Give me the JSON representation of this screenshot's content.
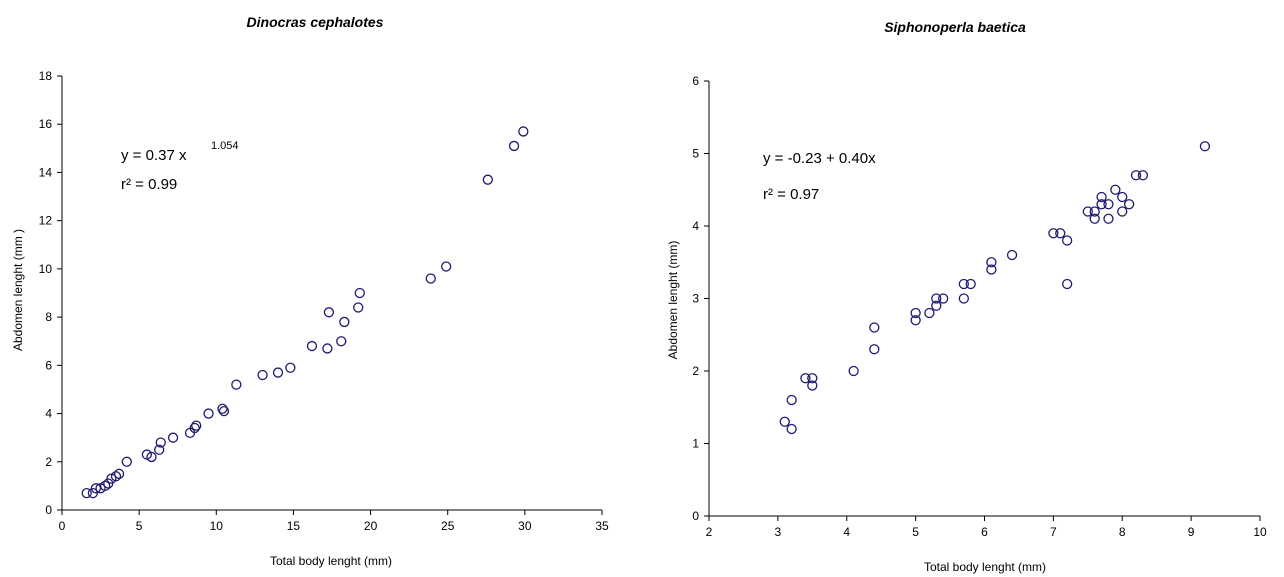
{
  "chart_data": [
    {
      "type": "scatter",
      "title": "Dinocras cephalotes",
      "xlabel": "Total body lenght (mm)",
      "ylabel": "Abdomen lenght (mm )",
      "xlim": [
        0,
        35
      ],
      "ylim": [
        0,
        18
      ],
      "x_ticks": [
        "0",
        "5",
        "10",
        "15",
        "20",
        "25",
        "30",
        "35"
      ],
      "y_ticks": [
        "0",
        "2",
        "4",
        "6",
        "8",
        "10",
        "12",
        "14",
        "16",
        "18"
      ],
      "grid": false,
      "annotation": {
        "equation": "y = 0.37 x",
        "exponent": "1.054",
        "r2": "r² = 0.99"
      },
      "points": [
        [
          1.6,
          0.7
        ],
        [
          2.0,
          0.7
        ],
        [
          2.2,
          0.9
        ],
        [
          2.5,
          0.9
        ],
        [
          2.8,
          1.0
        ],
        [
          3.0,
          1.1
        ],
        [
          3.2,
          1.3
        ],
        [
          3.5,
          1.4
        ],
        [
          3.7,
          1.5
        ],
        [
          4.2,
          2.0
        ],
        [
          5.5,
          2.3
        ],
        [
          5.8,
          2.2
        ],
        [
          6.3,
          2.5
        ],
        [
          6.4,
          2.8
        ],
        [
          7.2,
          3.0
        ],
        [
          8.3,
          3.2
        ],
        [
          8.6,
          3.4
        ],
        [
          8.7,
          3.5
        ],
        [
          9.5,
          4.0
        ],
        [
          10.4,
          4.2
        ],
        [
          10.5,
          4.1
        ],
        [
          11.3,
          5.2
        ],
        [
          13.0,
          5.6
        ],
        [
          14.0,
          5.7
        ],
        [
          14.8,
          5.9
        ],
        [
          16.2,
          6.8
        ],
        [
          17.2,
          6.7
        ],
        [
          17.3,
          8.2
        ],
        [
          18.1,
          7.0
        ],
        [
          18.3,
          7.8
        ],
        [
          19.2,
          8.4
        ],
        [
          19.3,
          9.0
        ],
        [
          23.9,
          9.6
        ],
        [
          24.9,
          10.1
        ],
        [
          27.6,
          13.7
        ],
        [
          29.3,
          15.1
        ],
        [
          29.9,
          15.7
        ]
      ]
    },
    {
      "type": "scatter",
      "title": "Siphonoperla baetica",
      "xlabel": "Total body lenght (mm)",
      "ylabel": "Abdomen lenght (mm)",
      "xlim": [
        2,
        10
      ],
      "ylim": [
        0,
        6
      ],
      "x_ticks": [
        "2",
        "3",
        "4",
        "5",
        "6",
        "7",
        "8",
        "9",
        "10"
      ],
      "y_ticks": [
        "0",
        "1",
        "2",
        "3",
        "4",
        "5",
        "6"
      ],
      "grid": false,
      "annotation": {
        "equation": "y = -0.23 + 0.40x",
        "exponent": "",
        "r2": "r² = 0.97"
      },
      "points": [
        [
          3.1,
          1.3
        ],
        [
          3.2,
          1.2
        ],
        [
          3.2,
          1.6
        ],
        [
          3.4,
          1.9
        ],
        [
          3.5,
          1.9
        ],
        [
          3.5,
          1.8
        ],
        [
          4.1,
          2.0
        ],
        [
          4.4,
          2.3
        ],
        [
          4.4,
          2.6
        ],
        [
          5.0,
          2.7
        ],
        [
          5.0,
          2.8
        ],
        [
          5.2,
          2.8
        ],
        [
          5.3,
          2.9
        ],
        [
          5.3,
          3.0
        ],
        [
          5.4,
          3.0
        ],
        [
          5.7,
          3.0
        ],
        [
          5.7,
          3.2
        ],
        [
          5.8,
          3.2
        ],
        [
          6.1,
          3.4
        ],
        [
          6.1,
          3.5
        ],
        [
          6.4,
          3.6
        ],
        [
          7.0,
          3.9
        ],
        [
          7.1,
          3.9
        ],
        [
          7.2,
          3.8
        ],
        [
          7.2,
          3.2
        ],
        [
          7.5,
          4.2
        ],
        [
          7.6,
          4.1
        ],
        [
          7.6,
          4.2
        ],
        [
          7.7,
          4.3
        ],
        [
          7.7,
          4.4
        ],
        [
          7.8,
          4.3
        ],
        [
          7.8,
          4.1
        ],
        [
          7.9,
          4.5
        ],
        [
          8.0,
          4.4
        ],
        [
          8.0,
          4.2
        ],
        [
          8.1,
          4.3
        ],
        [
          8.2,
          4.7
        ],
        [
          8.3,
          4.7
        ],
        [
          9.2,
          5.1
        ]
      ]
    }
  ],
  "style": {
    "marker_color": "#1f1a6e",
    "axis_color": "#000000"
  }
}
